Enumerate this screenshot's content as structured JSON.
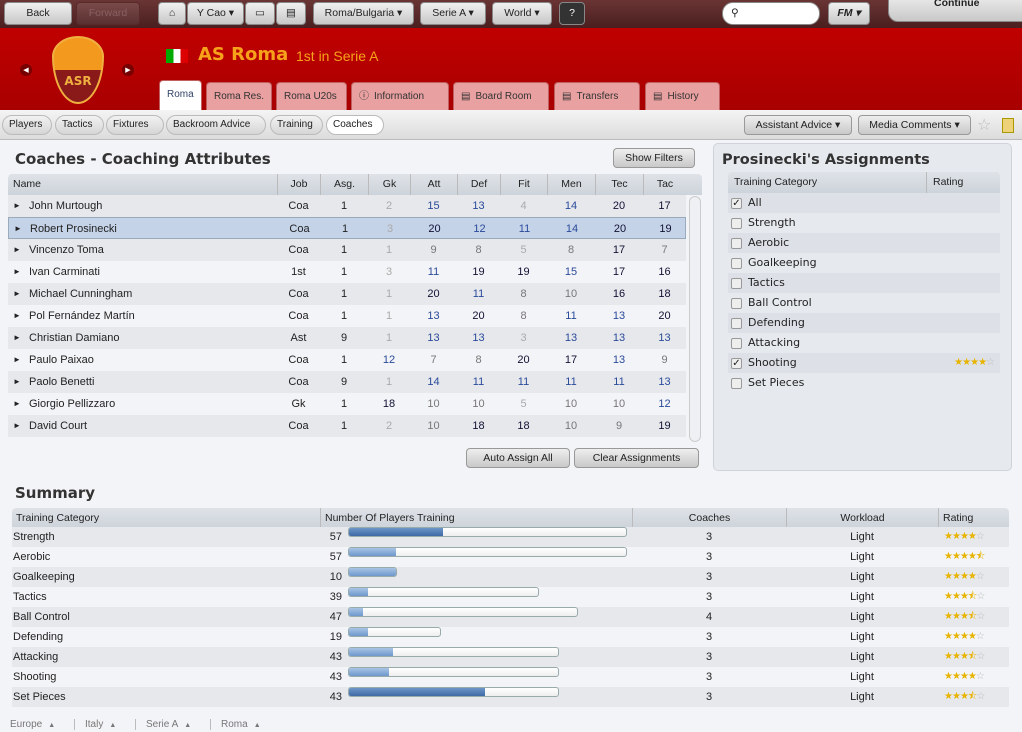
{
  "topbar": {
    "back": "Back",
    "forward": "Forward",
    "manager": "Y Cao",
    "nation": "Roma/Bulgaria",
    "league": "Serie A",
    "world": "World",
    "help": "?",
    "search_placeholder": "",
    "fm": "FM",
    "continue": "Continue"
  },
  "club": {
    "name": "AS Roma",
    "position": "1st in Serie A",
    "crest_text": "ASR"
  },
  "tabs": [
    "Roma",
    "Roma Res.",
    "Roma U20s",
    "Information",
    "Board Room",
    "Transfers",
    "History"
  ],
  "subnav": [
    "Players",
    "Tactics",
    "Fixtures",
    "Backroom Advice",
    "Training",
    "Coaches"
  ],
  "subnav_right": {
    "assistant": "Assistant Advice",
    "media": "Media Comments"
  },
  "coaches": {
    "title": "Coaches - Coaching Attributes",
    "show_filters": "Show Filters",
    "columns": [
      "Name",
      "Job",
      "Asg.",
      "Gk",
      "Att",
      "Def",
      "Fit",
      "Men",
      "Tec",
      "Tac"
    ],
    "rows": [
      [
        "John Murtough",
        "Coa",
        "1",
        "2",
        "15",
        "13",
        "4",
        "14",
        "20",
        "17"
      ],
      [
        "Robert Prosinecki",
        "Coa",
        "1",
        "3",
        "20",
        "12",
        "11",
        "14",
        "20",
        "19"
      ],
      [
        "Vincenzo Toma",
        "Coa",
        "1",
        "1",
        "9",
        "8",
        "5",
        "8",
        "17",
        "7"
      ],
      [
        "Ivan Carminati",
        "1st",
        "1",
        "3",
        "11",
        "19",
        "19",
        "15",
        "17",
        "16"
      ],
      [
        "Michael Cunningham",
        "Coa",
        "1",
        "1",
        "20",
        "11",
        "8",
        "10",
        "16",
        "18"
      ],
      [
        "Pol Fernández Martín",
        "Coa",
        "1",
        "1",
        "13",
        "20",
        "8",
        "11",
        "13",
        "20"
      ],
      [
        "Christian Damiano",
        "Ast",
        "9",
        "1",
        "13",
        "13",
        "3",
        "13",
        "13",
        "13"
      ],
      [
        "Paulo Paixao",
        "Coa",
        "1",
        "12",
        "7",
        "8",
        "20",
        "17",
        "13",
        "9"
      ],
      [
        "Paolo Benetti",
        "Coa",
        "9",
        "1",
        "14",
        "11",
        "11",
        "11",
        "11",
        "13"
      ],
      [
        "Giorgio Pellizzaro",
        "Gk",
        "1",
        "18",
        "10",
        "10",
        "5",
        "10",
        "10",
        "12"
      ],
      [
        "David Court",
        "Coa",
        "1",
        "2",
        "10",
        "18",
        "18",
        "10",
        "9",
        "19"
      ]
    ],
    "selected_row": 1,
    "auto_assign": "Auto Assign All",
    "clear": "Clear Assignments"
  },
  "assignments": {
    "title": "Prosinecki's Assignments",
    "col_category": "Training Category",
    "col_rating": "Rating",
    "items": [
      {
        "label": "All",
        "checked": true,
        "rating": null
      },
      {
        "label": "Strength",
        "checked": false,
        "rating": null
      },
      {
        "label": "Aerobic",
        "checked": false,
        "rating": null
      },
      {
        "label": "Goalkeeping",
        "checked": false,
        "rating": null
      },
      {
        "label": "Tactics",
        "checked": false,
        "rating": null
      },
      {
        "label": "Ball Control",
        "checked": false,
        "rating": null
      },
      {
        "label": "Defending",
        "checked": false,
        "rating": null
      },
      {
        "label": "Attacking",
        "checked": false,
        "rating": null
      },
      {
        "label": "Shooting",
        "checked": true,
        "rating": 4
      },
      {
        "label": "Set Pieces",
        "checked": false,
        "rating": null
      }
    ]
  },
  "summary": {
    "title": "Summary",
    "columns": [
      "Training Category",
      "Number Of Players Training",
      "Coaches",
      "Workload",
      "Rating"
    ],
    "rows": [
      {
        "category": "Strength",
        "players": "57",
        "fill": 0.34,
        "coaches": "3",
        "workload": "Light",
        "rating": 4
      },
      {
        "category": "Aerobic",
        "players": "57",
        "fill": 0.17,
        "coaches": "3",
        "workload": "Light",
        "rating": 4.5
      },
      {
        "category": "Goalkeeping",
        "players": "10",
        "fill": 1.0,
        "coaches": "3",
        "workload": "Light",
        "rating": 4
      },
      {
        "category": "Tactics",
        "players": "39",
        "fill": 0.1,
        "coaches": "3",
        "workload": "Light",
        "rating": 3.5
      },
      {
        "category": "Ball Control",
        "players": "47",
        "fill": 0.06,
        "coaches": "4",
        "workload": "Light",
        "rating": 3.5
      },
      {
        "category": "Defending",
        "players": "19",
        "fill": 0.21,
        "coaches": "3",
        "workload": "Light",
        "rating": 4
      },
      {
        "category": "Attacking",
        "players": "43",
        "fill": 0.21,
        "coaches": "3",
        "workload": "Light",
        "rating": 3.5
      },
      {
        "category": "Shooting",
        "players": "43",
        "fill": 0.19,
        "coaches": "3",
        "workload": "Light",
        "rating": 4
      },
      {
        "category": "Set Pieces",
        "players": "43",
        "fill": 0.65,
        "coaches": "3",
        "workload": "Light",
        "rating": 3.5
      }
    ]
  },
  "breadcrumb": [
    "Europe",
    "Italy",
    "Serie A",
    "Roma"
  ]
}
